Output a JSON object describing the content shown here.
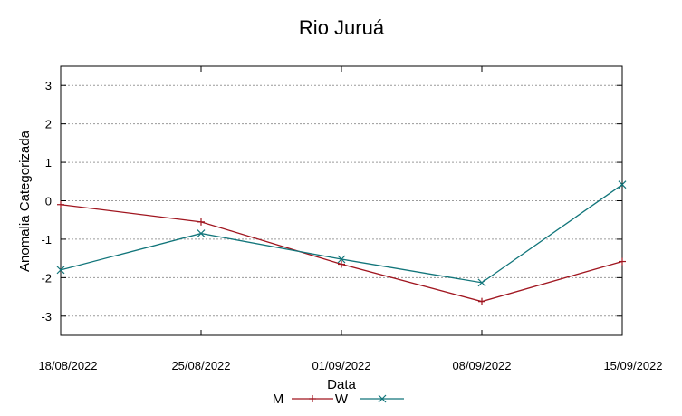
{
  "chart_data": {
    "type": "line",
    "title": "Rio Juruá",
    "xlabel": "Data",
    "ylabel": "Anomalia Categorizada",
    "categories": [
      "18/08/2022",
      "25/08/2022",
      "01/09/2022",
      "08/09/2022",
      "15/09/2022"
    ],
    "ylim": [
      -3.5,
      3.5
    ],
    "yticks": [
      "3",
      "2",
      "1",
      "0",
      "-1",
      "-2",
      "-3"
    ],
    "ytick_values": [
      3,
      2,
      1,
      0,
      -1,
      -2,
      -3
    ],
    "grid": true,
    "legend_position": "bottom-center",
    "series": [
      {
        "name": "M",
        "values": [
          -0.1,
          -0.55,
          -1.65,
          -2.62,
          -1.58
        ],
        "color": "#a0151f",
        "marker": "plus"
      },
      {
        "name": "W",
        "values": [
          -1.8,
          -0.85,
          -1.52,
          -2.13,
          0.42
        ],
        "color": "#11757a",
        "marker": "cross"
      }
    ]
  }
}
